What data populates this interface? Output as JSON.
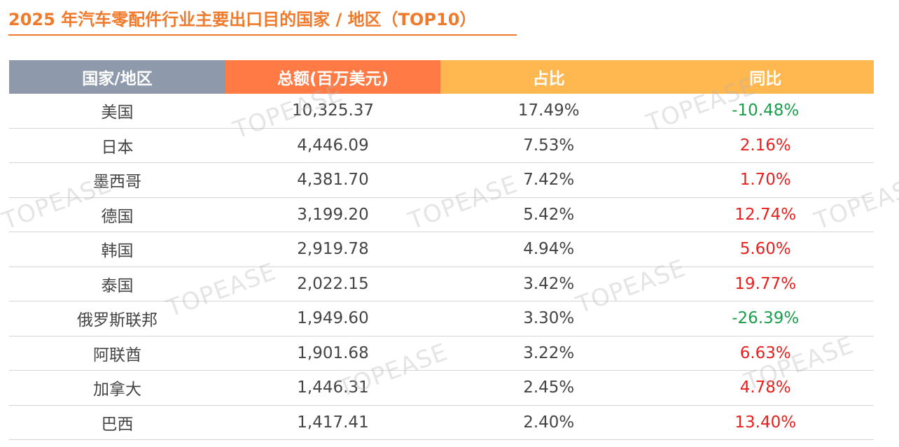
{
  "header": {
    "title": "2025 年汽车零配件行业主要出口目的国家 / 地区（TOP10）"
  },
  "watermark": "TOPEASE",
  "table": {
    "columns": [
      "国家/地区",
      "总额(百万美元)",
      "占比",
      "同比"
    ],
    "rows": [
      [
        "美国",
        "10,325.37",
        "17.49%",
        "-10.48%"
      ],
      [
        "日本",
        "4,446.09",
        "7.53%",
        "2.16%"
      ],
      [
        "墨西哥",
        "4,381.70",
        "7.42%",
        "1.70%"
      ],
      [
        "德国",
        "3,199.20",
        "5.42%",
        "12.74%"
      ],
      [
        "韩国",
        "2,919.78",
        "4.94%",
        "5.60%"
      ],
      [
        "泰国",
        "2,022.15",
        "3.42%",
        "19.77%"
      ],
      [
        "俄罗斯联邦",
        "1,949.60",
        "3.30%",
        "-26.39%"
      ],
      [
        "阿联酋",
        "1,901.68",
        "3.22%",
        "6.63%"
      ],
      [
        "加拿大",
        "1,446.31",
        "2.45%",
        "4.78%"
      ],
      [
        "巴西",
        "1,417.41",
        "2.40%",
        "13.40%"
      ]
    ]
  }
}
